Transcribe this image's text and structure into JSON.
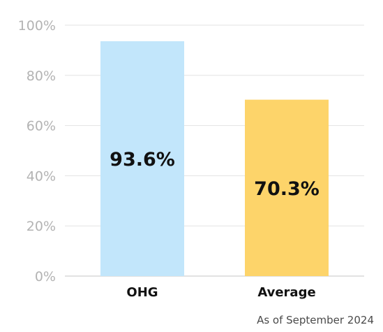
{
  "chart_data": {
    "type": "bar",
    "categories": [
      "OHG",
      "Average"
    ],
    "values": [
      93.6,
      70.3
    ],
    "value_labels": [
      "93.6%",
      "70.3%"
    ],
    "colors": [
      "#c2e6fb",
      "#fdd46a"
    ],
    "ylim": [
      0,
      100
    ],
    "yticks": [
      0,
      20,
      40,
      60,
      80,
      100
    ],
    "ytick_labels": [
      "0%",
      "20%",
      "40%",
      "60%",
      "80%",
      "100%"
    ],
    "grid": true,
    "title": "",
    "xlabel": "",
    "ylabel": ""
  },
  "footnote": "As of September 2024"
}
